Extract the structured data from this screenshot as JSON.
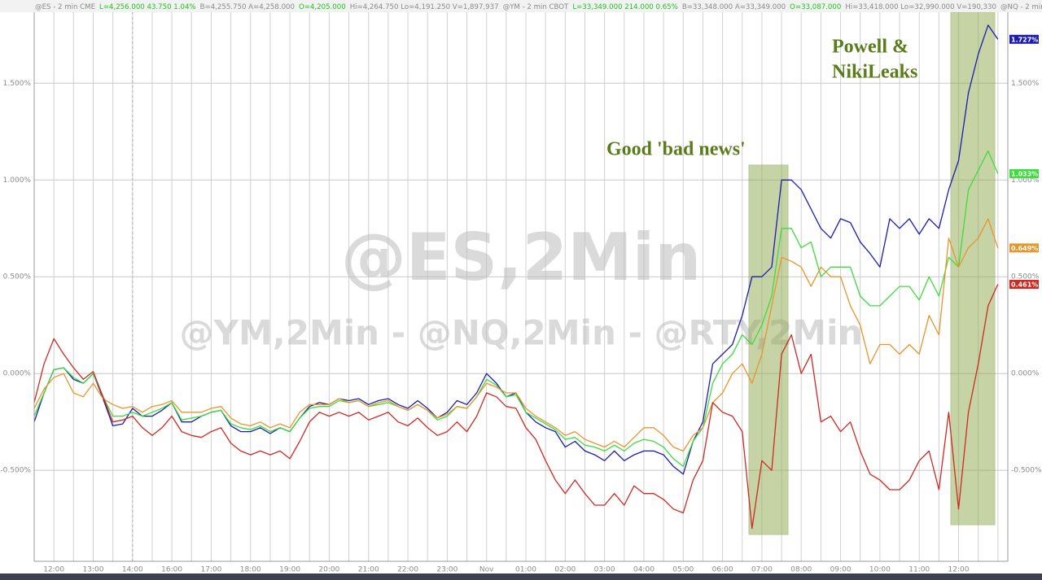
{
  "chart_data": {
    "type": "line",
    "header_quotes": [
      {
        "text": "@ES - 2 min  CME",
        "color": "#8a8a8a"
      },
      {
        "text": "L=4,256.000  43.750  1.04%",
        "color": "#1fc41f"
      },
      {
        "text": "B=4,255.750  A=4,258.000",
        "color": "#8a8a8a"
      },
      {
        "text": "O=4,205.000",
        "color": "#1fc41f"
      },
      {
        "text": "Hi=4,264.750  Lo=4,191.250  V=1,897,937",
        "color": "#8a8a8a"
      },
      {
        "text": "@YM - 2 min  CBOT",
        "color": "#8a8a8a"
      },
      {
        "text": "L=33,349.000  214.000  0.65%",
        "color": "#1fc41f"
      },
      {
        "text": "B=33,348.000  A=33,349.000",
        "color": "#8a8a8a"
      },
      {
        "text": "O=33,087.000",
        "color": "#1fc41f"
      },
      {
        "text": "Hi=33,418.000  Lo=32,990.000  V=190,330",
        "color": "#8a8a8a"
      },
      {
        "text": "@NQ - 2 min  CME  L=",
        "color": "#8a8a8a"
      }
    ],
    "watermarks": [
      "@ES,2Min",
      "@YM,2Min - @NQ,2Min - @RTY,2Min"
    ],
    "annotations": [
      "Good 'bad news'",
      "Powell &",
      "NikiLeaks"
    ],
    "categories": [
      null,
      null,
      "12:00",
      null,
      null,
      null,
      "13:00",
      null,
      null,
      null,
      "14:00",
      null,
      null,
      null,
      "16:00",
      null,
      null,
      null,
      "17:00",
      null,
      null,
      null,
      "18:00",
      null,
      null,
      null,
      "19:00",
      null,
      null,
      null,
      "20:00",
      null,
      null,
      null,
      "21:00",
      null,
      null,
      null,
      "22:00",
      null,
      null,
      null,
      "23:00",
      null,
      null,
      null,
      "Nov",
      null,
      null,
      null,
      "01:00",
      null,
      null,
      null,
      "02:00",
      null,
      null,
      null,
      "03:00",
      null,
      null,
      null,
      "04:00",
      null,
      null,
      null,
      "05:00",
      null,
      null,
      null,
      "06:00",
      null,
      null,
      null,
      "07:00",
      null,
      null,
      null,
      "08:00",
      null,
      null,
      null,
      "09:00",
      null,
      null,
      null,
      "10:00",
      null,
      null,
      null,
      "11:00",
      null,
      null,
      null,
      "12:00",
      null,
      null,
      null,
      null
    ],
    "ylim": [
      -0.97,
      1.93
    ],
    "yticks": [
      {
        "value": -0.5,
        "label": "-0.500%"
      },
      {
        "value": 0,
        "label": "0.000%"
      },
      {
        "value": 0.5,
        "label": "0.500%"
      },
      {
        "value": 1,
        "label": "1.000%"
      },
      {
        "value": 1.5,
        "label": "1.500%"
      }
    ],
    "grid": true,
    "series": [
      {
        "color": "#1c1cb0",
        "value_label": "1.727%",
        "values": [
          -0.25,
          -0.1,
          0.02,
          0.03,
          -0.03,
          -0.05,
          0.0,
          -0.13,
          -0.27,
          -0.26,
          -0.18,
          -0.22,
          -0.22,
          -0.19,
          -0.15,
          -0.25,
          -0.25,
          -0.22,
          -0.2,
          -0.19,
          -0.27,
          -0.3,
          -0.3,
          -0.28,
          -0.31,
          -0.28,
          -0.3,
          -0.23,
          -0.17,
          -0.15,
          -0.16,
          -0.13,
          -0.14,
          -0.13,
          -0.16,
          -0.14,
          -0.13,
          -0.16,
          -0.18,
          -0.14,
          -0.18,
          -0.23,
          -0.2,
          -0.14,
          -0.16,
          -0.1,
          0.0,
          -0.05,
          -0.12,
          -0.1,
          -0.2,
          -0.25,
          -0.28,
          -0.3,
          -0.38,
          -0.35,
          -0.4,
          -0.42,
          -0.45,
          -0.4,
          -0.45,
          -0.42,
          -0.4,
          -0.4,
          -0.42,
          -0.48,
          -0.52,
          -0.35,
          -0.25,
          0.05,
          0.1,
          0.15,
          0.3,
          0.5,
          0.5,
          0.55,
          1.0,
          1.0,
          0.95,
          0.85,
          0.75,
          0.7,
          0.8,
          0.78,
          0.68,
          0.62,
          0.55,
          0.8,
          0.75,
          0.8,
          0.72,
          0.8,
          0.75,
          0.95,
          1.1,
          1.45,
          1.65,
          1.8,
          1.727
        ]
      },
      {
        "color": "#3ddc3d",
        "value_label": "1.033%",
        "values": [
          -0.22,
          -0.1,
          0.02,
          0.03,
          -0.02,
          -0.05,
          0.0,
          -0.12,
          -0.22,
          -0.22,
          -0.2,
          -0.22,
          -0.2,
          -0.18,
          -0.15,
          -0.24,
          -0.23,
          -0.22,
          -0.2,
          -0.19,
          -0.26,
          -0.28,
          -0.29,
          -0.27,
          -0.3,
          -0.28,
          -0.3,
          -0.23,
          -0.18,
          -0.17,
          -0.17,
          -0.14,
          -0.15,
          -0.14,
          -0.17,
          -0.16,
          -0.15,
          -0.17,
          -0.19,
          -0.16,
          -0.19,
          -0.24,
          -0.22,
          -0.17,
          -0.18,
          -0.12,
          -0.03,
          -0.06,
          -0.12,
          -0.11,
          -0.2,
          -0.23,
          -0.26,
          -0.29,
          -0.34,
          -0.33,
          -0.37,
          -0.38,
          -0.4,
          -0.37,
          -0.4,
          -0.36,
          -0.34,
          -0.35,
          -0.38,
          -0.44,
          -0.48,
          -0.35,
          -0.28,
          -0.05,
          0.05,
          0.1,
          0.2,
          0.15,
          0.25,
          0.4,
          0.75,
          0.75,
          0.65,
          0.68,
          0.5,
          0.55,
          0.55,
          0.55,
          0.4,
          0.35,
          0.35,
          0.4,
          0.45,
          0.45,
          0.38,
          0.5,
          0.4,
          0.6,
          0.55,
          0.95,
          1.05,
          1.15,
          1.033
        ]
      },
      {
        "color": "#e8952c",
        "value_label": "0.649%",
        "values": [
          -0.18,
          -0.08,
          -0.02,
          0.0,
          -0.1,
          -0.12,
          -0.05,
          -0.13,
          -0.16,
          -0.18,
          -0.17,
          -0.2,
          -0.17,
          -0.16,
          -0.14,
          -0.2,
          -0.2,
          -0.2,
          -0.18,
          -0.17,
          -0.23,
          -0.26,
          -0.27,
          -0.25,
          -0.28,
          -0.26,
          -0.28,
          -0.2,
          -0.16,
          -0.16,
          -0.16,
          -0.13,
          -0.15,
          -0.14,
          -0.17,
          -0.15,
          -0.14,
          -0.17,
          -0.19,
          -0.16,
          -0.19,
          -0.23,
          -0.21,
          -0.17,
          -0.18,
          -0.12,
          -0.05,
          -0.07,
          -0.1,
          -0.1,
          -0.18,
          -0.22,
          -0.25,
          -0.28,
          -0.32,
          -0.3,
          -0.34,
          -0.36,
          -0.38,
          -0.35,
          -0.38,
          -0.33,
          -0.28,
          -0.28,
          -0.32,
          -0.38,
          -0.4,
          -0.32,
          -0.28,
          -0.15,
          -0.1,
          0.0,
          0.05,
          -0.05,
          0.1,
          0.35,
          0.6,
          0.58,
          0.55,
          0.45,
          0.55,
          0.5,
          0.5,
          0.35,
          0.25,
          0.05,
          0.15,
          0.15,
          0.1,
          0.15,
          0.1,
          0.3,
          0.2,
          0.7,
          0.55,
          0.65,
          0.7,
          0.8,
          0.649
        ]
      },
      {
        "color": "#cc2a22",
        "value_label": "0.461%",
        "values": [
          -0.15,
          0.05,
          0.18,
          0.1,
          0.03,
          -0.03,
          0.01,
          -0.12,
          -0.25,
          -0.24,
          -0.22,
          -0.28,
          -0.32,
          -0.28,
          -0.22,
          -0.3,
          -0.32,
          -0.33,
          -0.3,
          -0.28,
          -0.36,
          -0.4,
          -0.42,
          -0.4,
          -0.42,
          -0.4,
          -0.44,
          -0.35,
          -0.25,
          -0.2,
          -0.22,
          -0.2,
          -0.22,
          -0.2,
          -0.24,
          -0.22,
          -0.2,
          -0.25,
          -0.27,
          -0.23,
          -0.28,
          -0.32,
          -0.3,
          -0.25,
          -0.3,
          -0.22,
          -0.1,
          -0.12,
          -0.17,
          -0.18,
          -0.28,
          -0.34,
          -0.45,
          -0.55,
          -0.62,
          -0.55,
          -0.62,
          -0.68,
          -0.68,
          -0.62,
          -0.68,
          -0.58,
          -0.62,
          -0.62,
          -0.65,
          -0.7,
          -0.72,
          -0.55,
          -0.45,
          -0.15,
          -0.2,
          -0.22,
          -0.3,
          -0.8,
          -0.45,
          -0.5,
          0.1,
          0.2,
          0.0,
          0.1,
          -0.25,
          -0.22,
          -0.3,
          -0.25,
          -0.4,
          -0.52,
          -0.55,
          -0.6,
          -0.6,
          -0.55,
          -0.45,
          -0.4,
          -0.6,
          -0.2,
          -0.7,
          -0.2,
          0.05,
          0.35,
          0.461
        ]
      }
    ]
  }
}
